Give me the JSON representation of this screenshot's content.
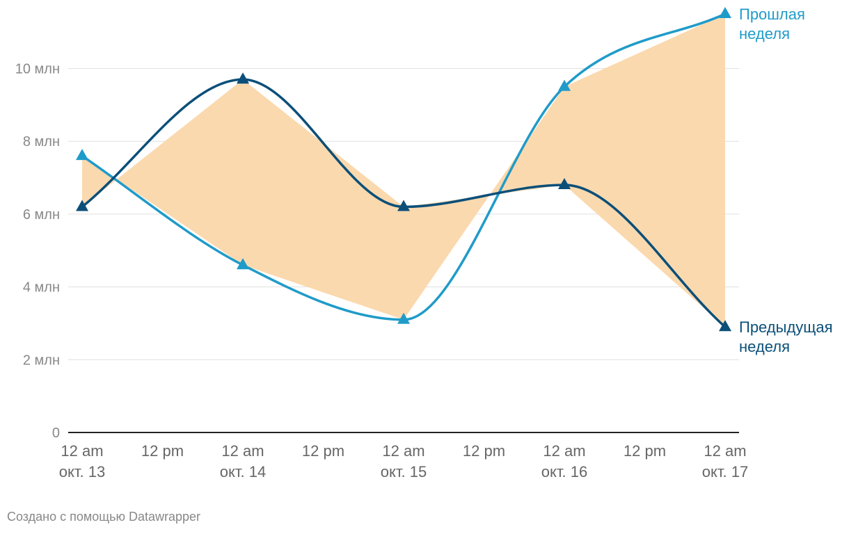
{
  "chart_data": {
    "type": "line",
    "title": "",
    "xlabel": "",
    "ylabel": "",
    "ylim": [
      0,
      11.5
    ],
    "x_range": [
      "2023-10-13",
      "2023-10-17"
    ],
    "y_ticks": [
      {
        "value": 0,
        "label": "0"
      },
      {
        "value": 2,
        "label": "2 млн"
      },
      {
        "value": 4,
        "label": "4 млн"
      },
      {
        "value": 6,
        "label": "6 млн"
      },
      {
        "value": 8,
        "label": "8 млн"
      },
      {
        "value": 10,
        "label": "10 млн"
      }
    ],
    "x_ticks": [
      {
        "x": "2023-10-13 00:00",
        "line1": "12 am",
        "line2": "окт. 13"
      },
      {
        "x": "2023-10-13 12:00",
        "line1": "12 pm",
        "line2": ""
      },
      {
        "x": "2023-10-14 00:00",
        "line1": "12 am",
        "line2": "окт. 14"
      },
      {
        "x": "2023-10-14 12:00",
        "line1": "12 pm",
        "line2": ""
      },
      {
        "x": "2023-10-15 00:00",
        "line1": "12 am",
        "line2": "окт. 15"
      },
      {
        "x": "2023-10-15 12:00",
        "line1": "12 pm",
        "line2": ""
      },
      {
        "x": "2023-10-16 00:00",
        "line1": "12 am",
        "line2": "окт. 16"
      },
      {
        "x": "2023-10-16 12:00",
        "line1": "12 pm",
        "line2": ""
      },
      {
        "x": "2023-10-17 00:00",
        "line1": "12 am",
        "line2": "окт. 17"
      }
    ],
    "x": [
      "2023-10-13",
      "2023-10-14",
      "2023-10-15",
      "2023-10-16",
      "2023-10-17"
    ],
    "series": [
      {
        "name": "Прошлая неделя",
        "label_lines": [
          "Прошлая",
          "неделя"
        ],
        "color": "#1f9bc9",
        "values": [
          7.6,
          4.6,
          3.1,
          9.5,
          11.5
        ]
      },
      {
        "name": "Предыдущая неделя",
        "label_lines": [
          "Предыдущая",
          "неделя"
        ],
        "color": "#0b4f79",
        "values": [
          6.2,
          9.7,
          6.2,
          6.8,
          2.9
        ]
      }
    ],
    "range_fill_color": "#fbd9ae",
    "grid": true
  },
  "credit": "Создано с помощью Datawrapper"
}
